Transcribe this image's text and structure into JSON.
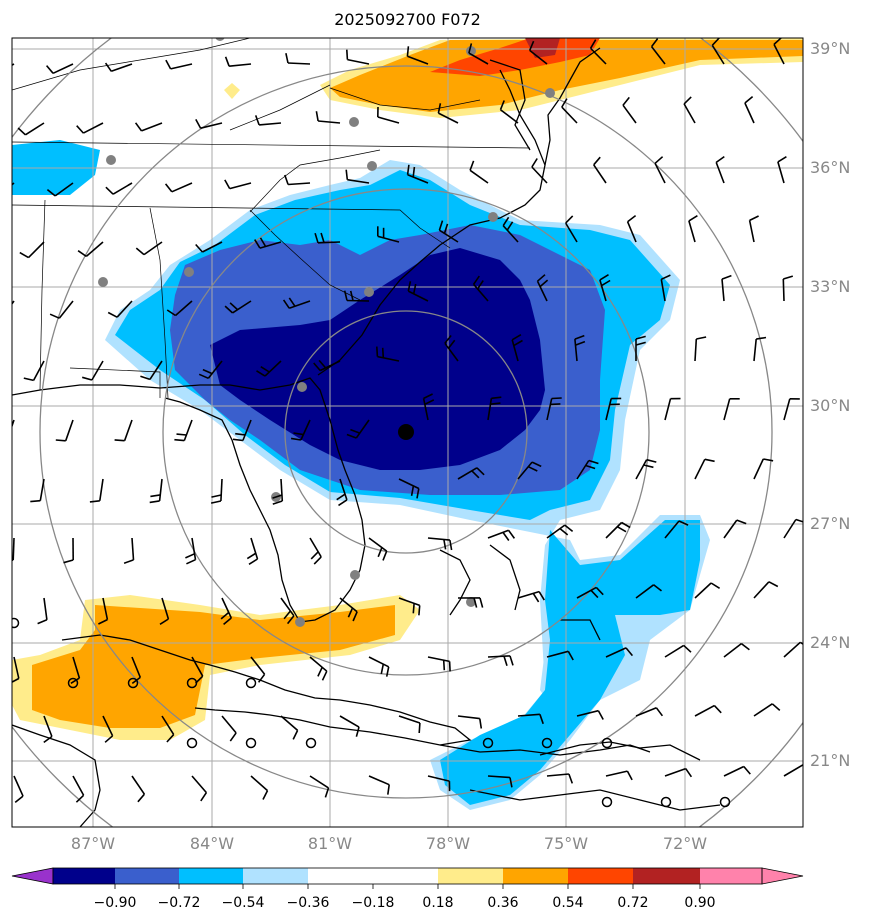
{
  "title": "2025092700 F072",
  "lat_labels": [
    "39°N",
    "36°N",
    "33°N",
    "30°N",
    "27°N",
    "24°N",
    "21°N"
  ],
  "lon_labels": [
    "87°W",
    "84°W",
    "81°W",
    "78°W",
    "75°W",
    "72°W"
  ],
  "colorbar": {
    "ticks": [
      "−0.90",
      "−0.72",
      "−0.54",
      "−0.36",
      "−0.18",
      "0.18",
      "0.36",
      "0.54",
      "0.72",
      "0.90"
    ],
    "colors": [
      "#9932cc",
      "#00008b",
      "#3a5fcd",
      "#00bfff",
      "#b0e2ff",
      "#ffffff",
      "#ffec8b",
      "#ffa500",
      "#ff4500",
      "#b22222",
      "#ff82ab"
    ]
  },
  "colors": {
    "dark_navy": "#00008b",
    "royal_blue": "#3a5fcd",
    "sky_blue": "#00bfff",
    "pale_blue": "#b0e2ff",
    "pale_yellow": "#ffec8b",
    "orange": "#ffa500",
    "red_orange": "#ff4500",
    "firebrick": "#b22222",
    "gridline": "#aaaaaa",
    "range_ring": "#888888",
    "station": "#808080"
  },
  "map": {
    "center_marker": "storm-center",
    "projection": "PlateCarree",
    "extent_lon": [
      -89.5,
      -69.5
    ],
    "extent_lat": [
      19.5,
      39.5
    ]
  }
}
